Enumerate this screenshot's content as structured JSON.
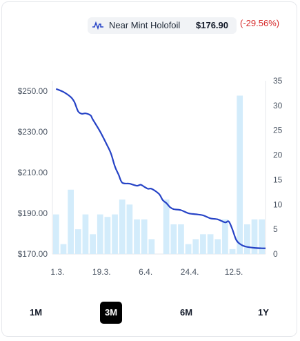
{
  "legend": {
    "name": "Near Mint Holofoil",
    "price": "$176.90",
    "change": "(-29.56%)",
    "icon": "line-chart-icon"
  },
  "ranges": [
    {
      "label": "1M",
      "active": false
    },
    {
      "label": "3M",
      "active": true
    },
    {
      "label": "6M",
      "active": false
    },
    {
      "label": "1Y",
      "active": false
    }
  ],
  "colors": {
    "line": "#2643c6",
    "bar": "#d3ecfb",
    "change_negative": "#d62828",
    "grid": "#e5e7eb"
  },
  "chart_data": {
    "type": "line+bar",
    "x_tick_labels": [
      "1.3.",
      "19.3.",
      "6.4.",
      "24.4.",
      "12.5."
    ],
    "left_axis": {
      "ticks": [
        "$170.00",
        "$190.00",
        "$210.00",
        "$230.00",
        "$250.00"
      ],
      "min": 170,
      "max": 255
    },
    "right_axis": {
      "ticks": [
        "0",
        "5",
        "10",
        "15",
        "20",
        "25",
        "30",
        "35"
      ],
      "min": 0,
      "max": 35
    },
    "series": [
      {
        "type": "bar",
        "axis": "right",
        "values": [
          8,
          2,
          13,
          5,
          8,
          4,
          8,
          7.5,
          8,
          11,
          10,
          7,
          7,
          3,
          0,
          11,
          6,
          6,
          2,
          3,
          4,
          4,
          3,
          7,
          1,
          32,
          6,
          7,
          7
        ]
      },
      {
        "type": "line",
        "axis": "left",
        "points": [
          [
            0,
            251.0
          ],
          [
            1,
            249.5
          ],
          [
            2,
            247.0
          ],
          [
            2.5,
            244.5
          ],
          [
            3,
            240.0
          ],
          [
            3.5,
            238.8
          ],
          [
            4,
            239.0
          ],
          [
            4.7,
            238.0
          ],
          [
            5,
            236.0
          ],
          [
            6,
            230.0
          ],
          [
            7,
            223.0
          ],
          [
            7.5,
            219.0
          ],
          [
            8,
            213.0
          ],
          [
            8.5,
            209.0
          ],
          [
            9,
            205.0
          ],
          [
            10,
            204.5
          ],
          [
            11,
            203.5
          ],
          [
            11.5,
            204.0
          ],
          [
            12,
            203.0
          ],
          [
            12.5,
            202.0
          ],
          [
            13,
            202.0
          ],
          [
            14,
            199.5
          ],
          [
            14.5,
            196.5
          ],
          [
            15,
            195.0
          ],
          [
            15.5,
            193.0
          ],
          [
            16,
            192.0
          ],
          [
            17,
            191.5
          ],
          [
            18,
            190.0
          ],
          [
            19,
            189.5
          ],
          [
            20,
            189.0
          ],
          [
            21,
            187.5
          ],
          [
            22,
            187.0
          ],
          [
            23,
            185.5
          ],
          [
            23.5,
            186.0
          ],
          [
            24,
            182.0
          ],
          [
            24.5,
            177.0
          ],
          [
            25,
            175.0
          ],
          [
            25.5,
            174.0
          ],
          [
            26,
            173.5
          ],
          [
            27,
            173.0
          ],
          [
            28,
            172.8
          ],
          [
            28.5,
            172.8
          ]
        ]
      }
    ]
  }
}
